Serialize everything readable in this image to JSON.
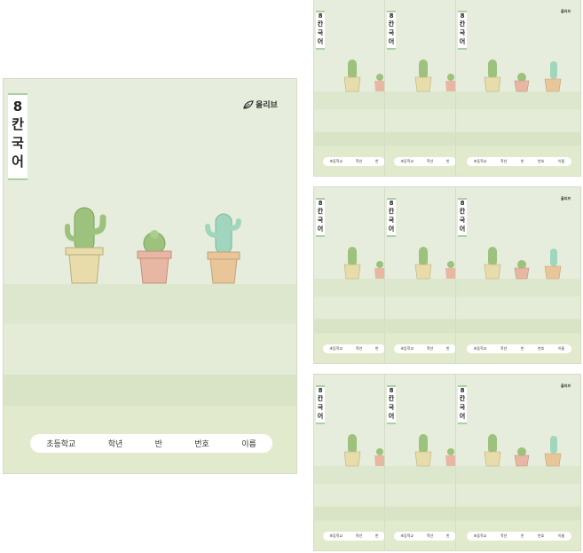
{
  "cover": {
    "brand": "올리브",
    "title_digit": "8",
    "title_chars": [
      "칸",
      "국",
      "어"
    ],
    "name_label_fields": [
      "초등학교",
      "학년",
      "반",
      "번호",
      "이름"
    ]
  },
  "colors": {
    "cover_bg": "#e7eddc",
    "spine_border": "#a9cfa3",
    "pot_yellow": "#e8dcaa",
    "pot_pink": "#e8b7a4",
    "pot_tan": "#e9c69a",
    "cactus_green": "#9cc27e",
    "cactus_mint": "#9fd6bd"
  },
  "icons": [
    "cactus-yellow-pot",
    "cactus-pink-pot",
    "cactus-mint-pot",
    "leaf-logo-icon"
  ]
}
